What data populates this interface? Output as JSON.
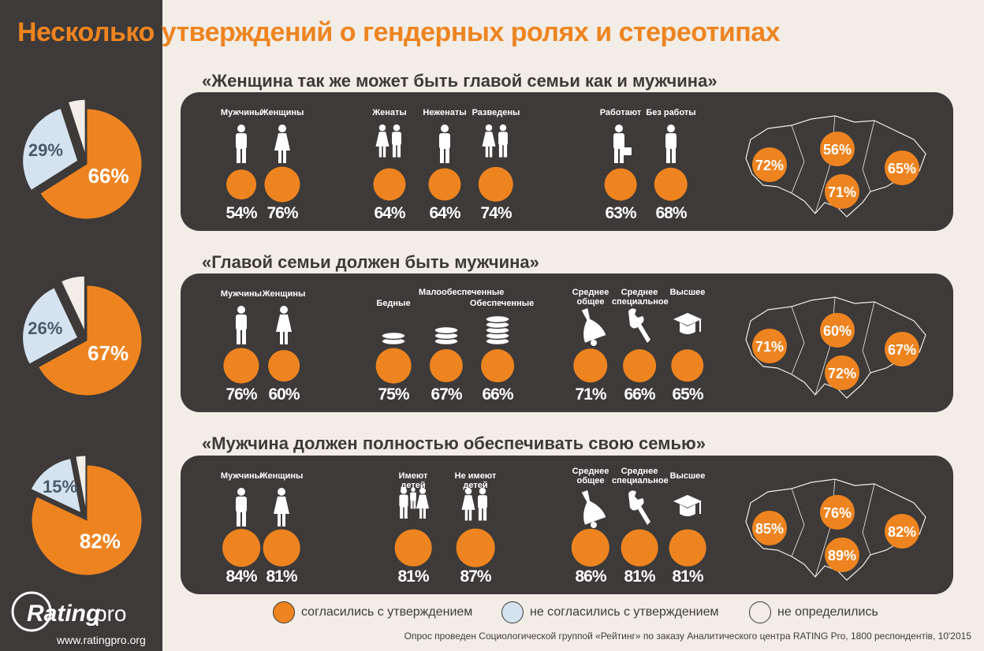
{
  "title": "Несколько утверждений о гендерных ролях и стереотипах",
  "colors": {
    "agree": "#ee8420",
    "disagree": "#d5e3f0",
    "undecided": "#f2ede6",
    "panel": "#3d3a39"
  },
  "logo": {
    "brand": "Rating",
    "suffix": "pro",
    "site": "www.ratingpro.org"
  },
  "legend": {
    "agree": "согласились с утверждением",
    "disagree": "не согласились с утверждением",
    "undecided": "не определились"
  },
  "source": "Опрос проведен Социологической группой «Рейтинг» по заказу Аналитического центра RATING Pro, 1800 респондентів, 10'2015",
  "chart_data": [
    {
      "type": "pie",
      "categories": [
        "согласились с утверждением",
        "не согласились с утверждением",
        "не определились"
      ],
      "values": [
        66,
        29,
        5
      ],
      "labels": [
        "66%",
        "29%"
      ],
      "title": "«Женщина так же может быть главой семьи как и мужчина»",
      "groups": [
        {
          "name": "gender",
          "items": [
            {
              "label": "Мужчины",
              "value": 54,
              "text": "54%",
              "icon": "man-icon"
            },
            {
              "label": "Женщины",
              "value": 76,
              "text": "76%",
              "icon": "woman-icon"
            }
          ]
        },
        {
          "name": "marital",
          "items": [
            {
              "label": "Женаты",
              "value": 64,
              "text": "64%",
              "icon": "married-couple-icon"
            },
            {
              "label": "Неженаты",
              "value": 64,
              "text": "64%",
              "icon": "man-icon"
            },
            {
              "label": "Разведены",
              "value": 74,
              "text": "74%",
              "icon": "divorced-couple-icon"
            }
          ]
        },
        {
          "name": "employment",
          "items": [
            {
              "label": "Работают",
              "value": 63,
              "text": "63%",
              "icon": "worker-briefcase-icon"
            },
            {
              "label": "Без работы",
              "value": 68,
              "text": "68%",
              "icon": "unemployed-man-icon"
            }
          ]
        }
      ],
      "regions": [
        {
          "value": 72,
          "text": "72%"
        },
        {
          "value": 56,
          "text": "56%"
        },
        {
          "value": 71,
          "text": "71%"
        },
        {
          "value": 65,
          "text": "65%"
        }
      ]
    },
    {
      "type": "pie",
      "categories": [
        "согласились с утверждением",
        "не согласились с утверждением",
        "не определились"
      ],
      "values": [
        67,
        26,
        7
      ],
      "labels": [
        "67%",
        "26%"
      ],
      "title": "«Главой семьи должен быть мужчина»",
      "groups": [
        {
          "name": "gender",
          "items": [
            {
              "label": "Мужчины",
              "value": 76,
              "text": "76%",
              "icon": "man-icon"
            },
            {
              "label": "Женщины",
              "value": 60,
              "text": "60%",
              "icon": "woman-icon"
            }
          ]
        },
        {
          "name": "income",
          "items": [
            {
              "label": "Бедные",
              "value": 75,
              "text": "75%",
              "icon": "coins-small-icon"
            },
            {
              "label": "Малообеспеченные",
              "value": 67,
              "text": "67%",
              "icon": "coins-medium-icon"
            },
            {
              "label": "Обеспеченные",
              "value": 66,
              "text": "66%",
              "icon": "coins-large-icon"
            }
          ]
        },
        {
          "name": "education",
          "items": [
            {
              "label": "Среднее общее",
              "value": 71,
              "text": "71%",
              "icon": "school-bell-icon"
            },
            {
              "label": "Среднее специальное",
              "value": 66,
              "text": "66%",
              "icon": "wrench-icon"
            },
            {
              "label": "Высшее",
              "value": 65,
              "text": "65%",
              "icon": "graduation-cap-icon"
            }
          ]
        }
      ],
      "regions": [
        {
          "value": 71,
          "text": "71%"
        },
        {
          "value": 60,
          "text": "60%"
        },
        {
          "value": 72,
          "text": "72%"
        },
        {
          "value": 67,
          "text": "67%"
        }
      ]
    },
    {
      "type": "pie",
      "categories": [
        "согласились с утверждением",
        "не согласились с утверждением",
        "не определились"
      ],
      "values": [
        82,
        15,
        3
      ],
      "labels": [
        "82%",
        "15%"
      ],
      "title": "«Мужчина должен полностью обеспечивать свою семью»",
      "groups": [
        {
          "name": "gender",
          "items": [
            {
              "label": "Мужчины",
              "value": 84,
              "text": "84%",
              "icon": "man-icon"
            },
            {
              "label": "Женщины",
              "value": 81,
              "text": "81%",
              "icon": "woman-icon"
            }
          ]
        },
        {
          "name": "children",
          "items": [
            {
              "label": "Имеют детей",
              "value": 81,
              "text": "81%",
              "icon": "family-icon"
            },
            {
              "label": "Не имеют детей",
              "value": 87,
              "text": "87%",
              "icon": "couple-icon"
            }
          ]
        },
        {
          "name": "education",
          "items": [
            {
              "label": "Среднее общее",
              "value": 86,
              "text": "86%",
              "icon": "school-bell-icon"
            },
            {
              "label": "Среднее специальное",
              "value": 81,
              "text": "81%",
              "icon": "wrench-icon"
            },
            {
              "label": "Высшее",
              "value": 81,
              "text": "81%",
              "icon": "graduation-cap-icon"
            }
          ]
        }
      ],
      "regions": [
        {
          "value": 85,
          "text": "85%"
        },
        {
          "value": 76,
          "text": "76%"
        },
        {
          "value": 89,
          "text": "89%"
        },
        {
          "value": 82,
          "text": "82%"
        }
      ]
    }
  ]
}
